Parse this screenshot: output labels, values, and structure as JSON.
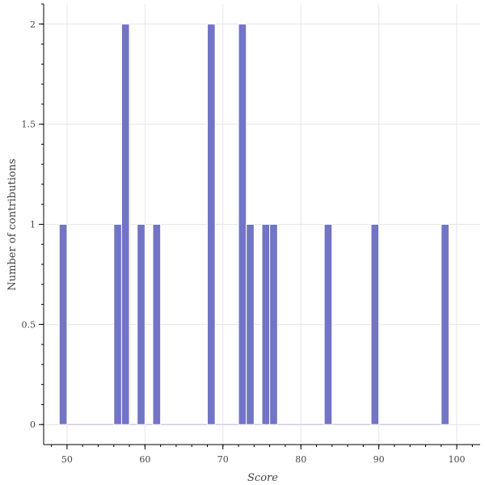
{
  "chart_data": {
    "type": "bar",
    "title": "",
    "xlabel": "Score",
    "ylabel": "Number of contributions",
    "xlim": [
      47,
      103
    ],
    "ylim": [
      -0.1,
      2.1
    ],
    "bin_width": 1,
    "grid": true,
    "x_ticks": [
      50,
      60,
      70,
      80,
      90,
      100
    ],
    "x_tick_labels": [
      "50",
      "60",
      "70",
      "80",
      "90",
      "100"
    ],
    "y_ticks": [
      0,
      0.5,
      1,
      1.5,
      2
    ],
    "y_tick_labels": [
      "0",
      "0.5",
      "1",
      "1.5",
      "2"
    ],
    "x": [
      49.5,
      56.5,
      57.5,
      59.5,
      61.5,
      68.5,
      72.5,
      73.5,
      75.5,
      76.5,
      83.5,
      89.5,
      98.5
    ],
    "values": [
      1,
      1,
      2,
      1,
      1,
      2,
      2,
      1,
      1,
      1,
      1,
      1,
      1
    ],
    "colors": {
      "bar": "#7274c6",
      "baseline": "#d9c8ea",
      "grid": "#e6e6e6"
    }
  }
}
